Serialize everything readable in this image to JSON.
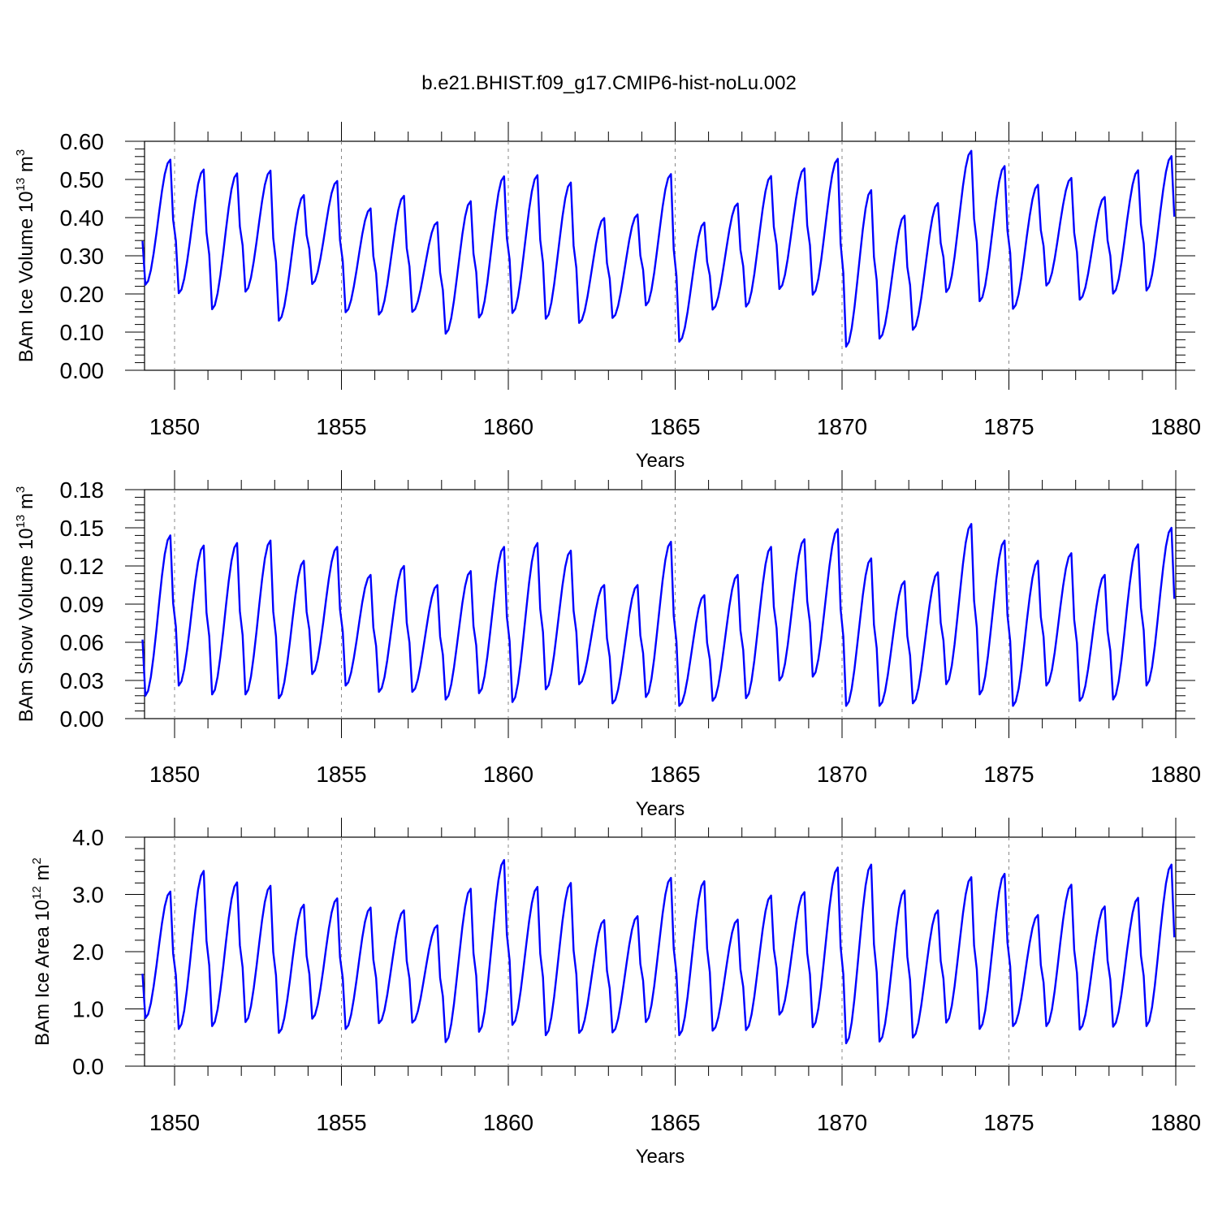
{
  "title": "b.e21.BHIST.f09_g17.CMIP6-hist-noLu.002",
  "colors": {
    "line": "#0000ff",
    "axis": "#000000",
    "refline": "#888888"
  },
  "chart_data": [
    {
      "type": "line",
      "xlabel": "Years",
      "ylabel": {
        "prefix": "BAm Ice Volume 10",
        "exp": "13",
        "unit": " m",
        "unit_exp": "3"
      },
      "xlim": [
        1849.1,
        1880.0
      ],
      "ylim": [
        0.0,
        0.6
      ],
      "x_ticks": [
        1850,
        1855,
        1860,
        1865,
        1870,
        1875,
        1880
      ],
      "y_ticks": [
        "0.00",
        "0.10",
        "0.20",
        "0.30",
        "0.40",
        "0.50",
        "0.60"
      ],
      "series": [
        {
          "x_start": 1849.04,
          "x_step": 0.08333,
          "peaks": [
            0.552,
            0.526,
            0.516,
            0.523,
            0.459,
            0.496,
            0.424,
            0.457,
            0.388,
            0.443,
            0.508,
            0.511,
            0.492,
            0.399,
            0.408,
            0.514,
            0.387,
            0.437,
            0.509,
            0.529,
            0.554,
            0.472,
            0.405,
            0.438,
            0.575,
            0.535,
            0.486,
            0.504,
            0.454,
            0.524,
            0.561
          ],
          "troughs": [
            0.224,
            0.202,
            0.16,
            0.206,
            0.13,
            0.226,
            0.152,
            0.146,
            0.153,
            0.096,
            0.138,
            0.15,
            0.135,
            0.124,
            0.137,
            0.17,
            0.075,
            0.159,
            0.167,
            0.213,
            0.198,
            0.062,
            0.083,
            0.106,
            0.205,
            0.181,
            0.161,
            0.222,
            0.185,
            0.201,
            0.209
          ]
        }
      ]
    },
    {
      "type": "line",
      "xlabel": "Years",
      "ylabel": {
        "prefix": "BAm Snow Volume 10",
        "exp": "13",
        "unit": " m",
        "unit_exp": "3"
      },
      "xlim": [
        1849.1,
        1880.0
      ],
      "ylim": [
        0.0,
        0.18
      ],
      "x_ticks": [
        1850,
        1855,
        1860,
        1865,
        1870,
        1875,
        1880
      ],
      "y_ticks": [
        "0.00",
        "0.03",
        "0.06",
        "0.09",
        "0.12",
        "0.15",
        "0.18"
      ],
      "series": [
        {
          "x_start": 1849.04,
          "x_step": 0.08333,
          "peaks": [
            0.144,
            0.136,
            0.138,
            0.14,
            0.124,
            0.135,
            0.113,
            0.12,
            0.105,
            0.116,
            0.135,
            0.138,
            0.132,
            0.105,
            0.105,
            0.139,
            0.097,
            0.113,
            0.135,
            0.141,
            0.149,
            0.126,
            0.108,
            0.115,
            0.153,
            0.14,
            0.124,
            0.13,
            0.113,
            0.137,
            0.15
          ],
          "troughs": [
            0.018,
            0.026,
            0.019,
            0.019,
            0.016,
            0.035,
            0.026,
            0.021,
            0.021,
            0.015,
            0.02,
            0.013,
            0.023,
            0.027,
            0.012,
            0.017,
            0.01,
            0.014,
            0.016,
            0.03,
            0.033,
            0.01,
            0.01,
            0.012,
            0.027,
            0.019,
            0.01,
            0.026,
            0.014,
            0.015,
            0.026
          ]
        }
      ]
    },
    {
      "type": "line",
      "xlabel": "Years",
      "ylabel": {
        "prefix": "BAm Ice Area 10",
        "exp": "12",
        "unit": " m",
        "unit_exp": "2"
      },
      "xlim": [
        1849.1,
        1880.0
      ],
      "ylim": [
        0.0,
        4.0
      ],
      "x_ticks": [
        1850,
        1855,
        1860,
        1865,
        1870,
        1875,
        1880
      ],
      "y_ticks": [
        "0.0",
        "1.0",
        "2.0",
        "3.0",
        "4.0"
      ],
      "series": [
        {
          "x_start": 1849.04,
          "x_step": 0.08333,
          "peaks": [
            3.05,
            3.41,
            3.21,
            3.15,
            2.82,
            2.93,
            2.77,
            2.72,
            2.46,
            3.1,
            3.6,
            3.13,
            3.2,
            2.55,
            2.62,
            3.29,
            3.23,
            2.56,
            2.98,
            3.04,
            3.47,
            3.52,
            3.07,
            2.72,
            3.3,
            3.36,
            2.64,
            3.17,
            2.79,
            2.94,
            3.52
          ],
          "troughs": [
            0.84,
            0.65,
            0.7,
            0.77,
            0.58,
            0.83,
            0.65,
            0.75,
            0.76,
            0.42,
            0.6,
            0.72,
            0.54,
            0.58,
            0.59,
            0.77,
            0.54,
            0.62,
            0.63,
            0.9,
            0.68,
            0.4,
            0.43,
            0.5,
            0.76,
            0.65,
            0.7,
            0.7,
            0.64,
            0.69,
            0.7
          ]
        }
      ]
    }
  ]
}
